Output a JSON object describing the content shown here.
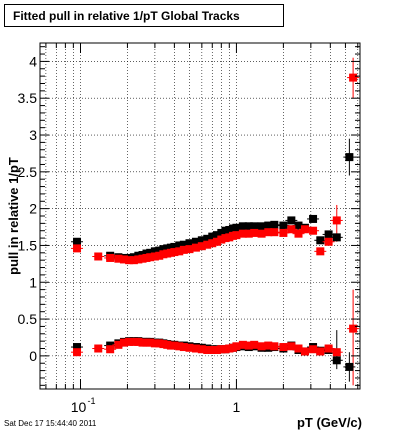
{
  "chart_data": {
    "type": "scatter",
    "title": "Fitted pull in relative 1/pT  Global Tracks",
    "xlabel": "pT (GeV/c)",
    "ylabel": "pull in relative 1/pT",
    "xscale": "log",
    "xlim": [
      0.055,
      6.2
    ],
    "ylim": [
      -0.45,
      4.25
    ],
    "grid": true,
    "x_tick_labels": [
      {
        "value": 0.1,
        "base": "10",
        "exp": "-1"
      },
      {
        "value": 1,
        "base": "1",
        "exp": ""
      }
    ],
    "y_ticks": [
      {
        "value": 0,
        "label": "0"
      },
      {
        "value": 0.5,
        "label": "0.5"
      },
      {
        "value": 1,
        "label": "1"
      },
      {
        "value": 1.5,
        "label": "1.5"
      },
      {
        "value": 2,
        "label": "2"
      },
      {
        "value": 2.5,
        "label": "2.5"
      },
      {
        "value": 3,
        "label": "3"
      },
      {
        "value": 3.5,
        "label": "3.5"
      },
      {
        "value": 4,
        "label": "4"
      }
    ],
    "series": [
      {
        "color": "#000000",
        "points": [
          [
            0.095,
            1.55
          ],
          [
            0.155,
            1.36
          ],
          [
            0.175,
            1.34
          ],
          [
            0.19,
            1.33
          ],
          [
            0.205,
            1.33
          ],
          [
            0.22,
            1.34
          ],
          [
            0.235,
            1.36
          ],
          [
            0.25,
            1.37
          ],
          [
            0.265,
            1.39
          ],
          [
            0.28,
            1.4
          ],
          [
            0.3,
            1.42
          ],
          [
            0.32,
            1.43
          ],
          [
            0.34,
            1.45
          ],
          [
            0.36,
            1.46
          ],
          [
            0.38,
            1.47
          ],
          [
            0.4,
            1.48
          ],
          [
            0.43,
            1.5
          ],
          [
            0.46,
            1.51
          ],
          [
            0.5,
            1.53
          ],
          [
            0.55,
            1.55
          ],
          [
            0.6,
            1.57
          ],
          [
            0.65,
            1.59
          ],
          [
            0.7,
            1.62
          ],
          [
            0.75,
            1.64
          ],
          [
            0.8,
            1.67
          ],
          [
            0.85,
            1.7
          ],
          [
            0.9,
            1.71
          ],
          [
            0.95,
            1.73
          ],
          [
            1.0,
            1.74
          ],
          [
            1.1,
            1.76
          ],
          [
            1.2,
            1.76
          ],
          [
            1.3,
            1.76
          ],
          [
            1.45,
            1.76
          ],
          [
            1.6,
            1.77
          ],
          [
            1.75,
            1.78
          ],
          [
            2.0,
            1.77
          ],
          [
            2.25,
            1.84
          ],
          [
            2.5,
            1.77
          ],
          [
            2.75,
            1.74
          ],
          [
            3.1,
            1.86
          ],
          [
            3.45,
            1.57
          ],
          [
            3.9,
            1.65
          ],
          [
            4.4,
            1.61
          ],
          [
            5.3,
            2.7
          ],
          [
            0.095,
            0.12
          ],
          [
            0.155,
            0.14
          ],
          [
            0.175,
            0.17
          ],
          [
            0.19,
            0.19
          ],
          [
            0.205,
            0.2
          ],
          [
            0.22,
            0.2
          ],
          [
            0.235,
            0.2
          ],
          [
            0.25,
            0.19
          ],
          [
            0.265,
            0.19
          ],
          [
            0.28,
            0.19
          ],
          [
            0.3,
            0.18
          ],
          [
            0.32,
            0.18
          ],
          [
            0.34,
            0.17
          ],
          [
            0.36,
            0.16
          ],
          [
            0.38,
            0.15
          ],
          [
            0.4,
            0.15
          ],
          [
            0.43,
            0.14
          ],
          [
            0.46,
            0.14
          ],
          [
            0.5,
            0.13
          ],
          [
            0.55,
            0.12
          ],
          [
            0.6,
            0.11
          ],
          [
            0.65,
            0.1
          ],
          [
            0.7,
            0.09
          ],
          [
            0.75,
            0.09
          ],
          [
            0.8,
            0.09
          ],
          [
            0.85,
            0.09
          ],
          [
            0.9,
            0.1
          ],
          [
            0.95,
            0.11
          ],
          [
            1.0,
            0.12
          ],
          [
            1.1,
            0.13
          ],
          [
            1.2,
            0.12
          ],
          [
            1.3,
            0.13
          ],
          [
            1.45,
            0.11
          ],
          [
            1.6,
            0.11
          ],
          [
            1.75,
            0.12
          ],
          [
            2.0,
            0.1
          ],
          [
            2.25,
            0.14
          ],
          [
            2.5,
            0.08
          ],
          [
            2.75,
            0.06
          ],
          [
            3.1,
            0.12
          ],
          [
            3.45,
            0.07
          ],
          [
            3.9,
            0.08
          ],
          [
            4.4,
            -0.06
          ],
          [
            5.3,
            -0.15
          ]
        ],
        "error_bars": [
          [
            4.4,
            0.05,
            0.35
          ],
          [
            4.4,
            -0.18,
            0.08
          ],
          [
            5.3,
            2.45,
            2.95
          ],
          [
            5.3,
            -0.35,
            0.05
          ]
        ]
      },
      {
        "color": "#ff0000",
        "points": [
          [
            0.095,
            1.46
          ],
          [
            0.13,
            1.35
          ],
          [
            0.155,
            1.33
          ],
          [
            0.175,
            1.32
          ],
          [
            0.19,
            1.31
          ],
          [
            0.205,
            1.3
          ],
          [
            0.22,
            1.3
          ],
          [
            0.235,
            1.31
          ],
          [
            0.25,
            1.32
          ],
          [
            0.265,
            1.33
          ],
          [
            0.28,
            1.34
          ],
          [
            0.3,
            1.35
          ],
          [
            0.32,
            1.36
          ],
          [
            0.34,
            1.38
          ],
          [
            0.36,
            1.39
          ],
          [
            0.38,
            1.4
          ],
          [
            0.4,
            1.41
          ],
          [
            0.43,
            1.42
          ],
          [
            0.46,
            1.44
          ],
          [
            0.5,
            1.45
          ],
          [
            0.55,
            1.47
          ],
          [
            0.6,
            1.49
          ],
          [
            0.65,
            1.51
          ],
          [
            0.7,
            1.53
          ],
          [
            0.75,
            1.55
          ],
          [
            0.8,
            1.58
          ],
          [
            0.85,
            1.6
          ],
          [
            0.9,
            1.61
          ],
          [
            0.95,
            1.63
          ],
          [
            1.0,
            1.64
          ],
          [
            1.1,
            1.66
          ],
          [
            1.2,
            1.66
          ],
          [
            1.3,
            1.67
          ],
          [
            1.45,
            1.66
          ],
          [
            1.6,
            1.68
          ],
          [
            1.75,
            1.68
          ],
          [
            2.0,
            1.67
          ],
          [
            2.25,
            1.72
          ],
          [
            2.5,
            1.66
          ],
          [
            2.75,
            1.72
          ],
          [
            3.1,
            1.7
          ],
          [
            3.45,
            1.42
          ],
          [
            3.9,
            1.55
          ],
          [
            4.4,
            1.84
          ],
          [
            5.6,
            3.78
          ],
          [
            0.095,
            0.05
          ],
          [
            0.13,
            0.1
          ],
          [
            0.155,
            0.09
          ],
          [
            0.175,
            0.15
          ],
          [
            0.19,
            0.18
          ],
          [
            0.205,
            0.19
          ],
          [
            0.22,
            0.19
          ],
          [
            0.235,
            0.19
          ],
          [
            0.25,
            0.18
          ],
          [
            0.265,
            0.18
          ],
          [
            0.28,
            0.18
          ],
          [
            0.3,
            0.17
          ],
          [
            0.32,
            0.17
          ],
          [
            0.34,
            0.16
          ],
          [
            0.36,
            0.15
          ],
          [
            0.38,
            0.14
          ],
          [
            0.4,
            0.14
          ],
          [
            0.43,
            0.13
          ],
          [
            0.46,
            0.12
          ],
          [
            0.5,
            0.11
          ],
          [
            0.55,
            0.1
          ],
          [
            0.6,
            0.09
          ],
          [
            0.65,
            0.08
          ],
          [
            0.7,
            0.08
          ],
          [
            0.75,
            0.08
          ],
          [
            0.8,
            0.09
          ],
          [
            0.85,
            0.09
          ],
          [
            0.9,
            0.1
          ],
          [
            0.95,
            0.11
          ],
          [
            1.0,
            0.13
          ],
          [
            1.1,
            0.15
          ],
          [
            1.2,
            0.14
          ],
          [
            1.3,
            0.15
          ],
          [
            1.45,
            0.13
          ],
          [
            1.6,
            0.14
          ],
          [
            1.75,
            0.13
          ],
          [
            2.0,
            0.12
          ],
          [
            2.25,
            0.13
          ],
          [
            2.5,
            0.1
          ],
          [
            2.75,
            0.06
          ],
          [
            3.1,
            0.09
          ],
          [
            3.45,
            0.06
          ],
          [
            3.9,
            0.1
          ],
          [
            4.4,
            0.05
          ],
          [
            5.6,
            0.37
          ]
        ],
        "error_bars": [
          [
            4.4,
            1.55,
            2.05
          ],
          [
            5.6,
            3.5,
            4.05
          ],
          [
            5.6,
            -0.4,
            0.9
          ]
        ]
      }
    ]
  },
  "footer": {
    "timestamp": "Sat Dec 17 15:44:40 2011"
  }
}
